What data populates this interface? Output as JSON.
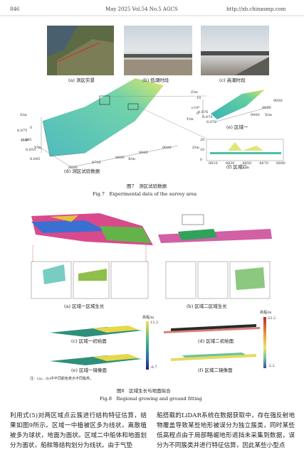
{
  "header": {
    "page": "846",
    "journal": "May 2025 Vol.54 No.5 AGCS",
    "url": "http://xb.chinasmp.com"
  },
  "figure7": {
    "panels": [
      "(a) 测区实景",
      "(b) 低潮时段",
      "(c) 高潮时段",
      "(d) 测区试验数据",
      "(e) 区域一",
      "(f) 区域二"
    ],
    "d_axes": {
      "z_label": "Z/m",
      "z_ticks": [
        "0"
      ],
      "y_exp": "×10⁶",
      "y_ticks": [
        "8.875",
        "8.865",
        "8.855",
        "8.845"
      ],
      "y_label": "Y/m",
      "x_ticks": [
        "8600",
        "8700",
        "8800",
        "8900",
        "9000"
      ],
      "x_label": "X/m"
    },
    "e_axes": {
      "z_label": "Z/m",
      "z_ticks": [
        "10",
        "0"
      ],
      "y_exp": "×10⁶",
      "y_ticks": [
        "8.876",
        "8.874",
        "8.872"
      ],
      "y_label": "Y/m",
      "x_ticks": [
        "8900",
        "8950",
        "9000"
      ],
      "x_label": "X/m"
    },
    "f_axes": {
      "z_label": "Z/m",
      "z_ticks": [
        "20",
        "10",
        "0"
      ],
      "x_ticks": [
        "8810",
        "8830",
        "8850",
        "8870",
        "8890"
      ],
      "x_label": "X/m"
    },
    "caption_cn": "图7　测区试验数据",
    "caption_en": "Fig.7　Experimental data of the survey area"
  },
  "figure8": {
    "panels": [
      "(a) 区域一区域生长",
      "(b) 区域二区域生长",
      "(c) 区域一初始面",
      "(d) 区域二初始面",
      "(e) 区域一镜像面",
      "(f) 区域二镜像面"
    ],
    "colorbar1": {
      "label": "高程/m",
      "max": "13.2",
      "min": "-6.7"
    },
    "colorbar2": {
      "label": "高程/m",
      "max": "22.2",
      "min": "-2.2"
    },
    "note": "注：(a)、(b)中不同颜色表示不同簇类。",
    "caption_cn": "图8　区域生长与地面拟合",
    "caption_en": "Fig.8　Regional growing and ground fitting"
  },
  "body": {
    "left": "利用式(5)对两区域点云簇进行结构特征估算，结果如图9所示。区域一中植被区多为线状，离散植被多为球状，地面为面状。区域二中船体和地面划分为面状，船舷等结构划分为线状。由于气垫",
    "right": "船搭载的LiDAR系统在数据获取中，存在强反射地物覆盖导致某些地形被误分为独立簇类，同时某些低高程点由于局部略崛地形遮挡未采集到数据，误分为不同簇类并进行特征估算，因此某些小型点"
  }
}
